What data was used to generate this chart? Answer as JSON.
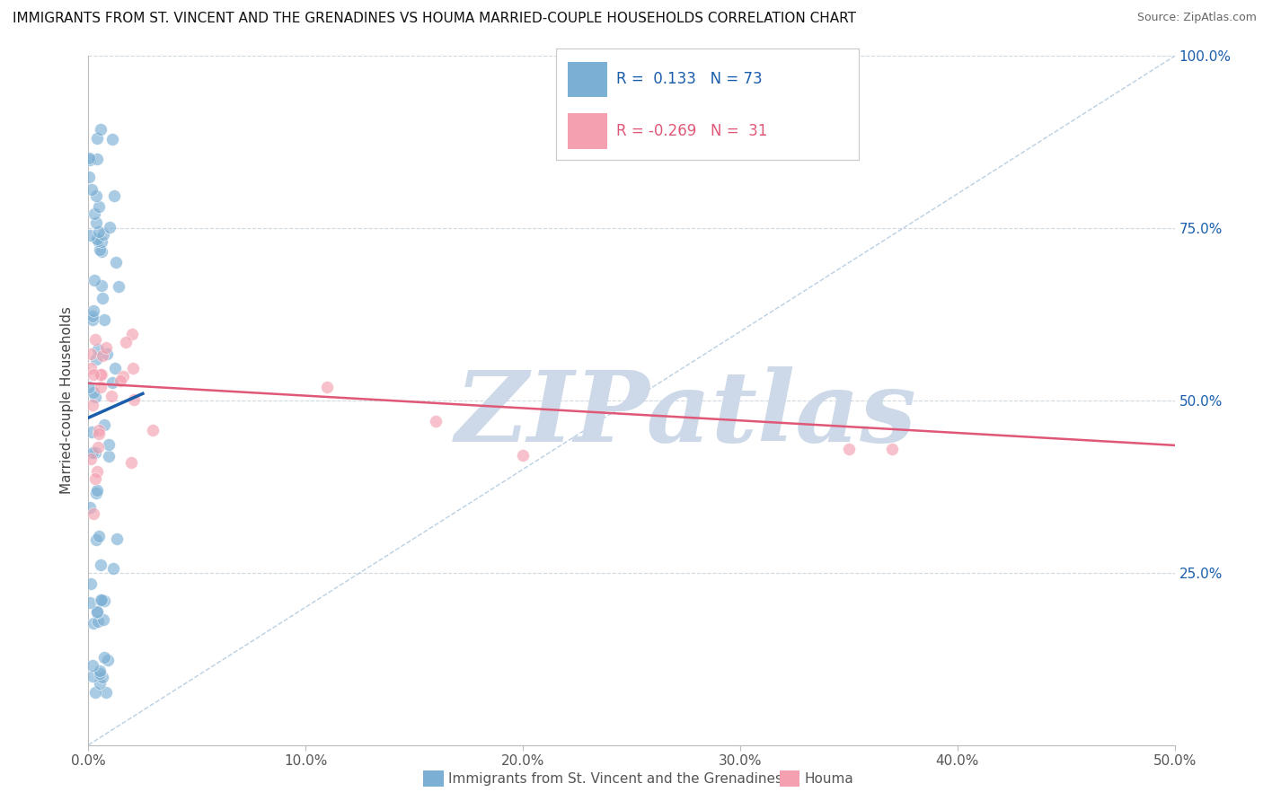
{
  "title": "IMMIGRANTS FROM ST. VINCENT AND THE GRENADINES VS HOUMA MARRIED-COUPLE HOUSEHOLDS CORRELATION CHART",
  "source": "Source: ZipAtlas.com",
  "xlabel_blue": "Immigrants from St. Vincent and the Grenadines",
  "xlabel_pink": "Houma",
  "ylabel": "Married-couple Households",
  "xlim": [
    0.0,
    0.5
  ],
  "ylim": [
    0.0,
    1.0
  ],
  "xtick_vals": [
    0.0,
    0.1,
    0.2,
    0.3,
    0.4,
    0.5
  ],
  "xtick_labels": [
    "0.0%",
    "10.0%",
    "20.0%",
    "30.0%",
    "40.0%",
    "50.0%"
  ],
  "ytick_vals": [
    0.0,
    0.25,
    0.5,
    0.75,
    1.0
  ],
  "ytick_labels_right": [
    "",
    "25.0%",
    "50.0%",
    "75.0%",
    "100.0%"
  ],
  "R_blue": 0.133,
  "N_blue": 73,
  "R_pink": -0.269,
  "N_pink": 31,
  "blue_color": "#7BAFD4",
  "pink_color": "#F4A0B0",
  "blue_line_color": "#1A5DAB",
  "pink_line_color": "#E05878",
  "ref_line_color": "#A8C4DC",
  "watermark_color": "#CDD9E8",
  "watermark_text": "ZIPatlas",
  "blue_line_x": [
    0.0,
    0.025
  ],
  "blue_line_y": [
    0.475,
    0.51
  ],
  "pink_line_x": [
    0.0,
    0.5
  ],
  "pink_line_y": [
    0.525,
    0.435
  ],
  "diag_line_x": [
    0.0,
    0.5
  ],
  "diag_line_y": [
    0.0,
    1.0
  ],
  "legend_blue_text": "R =  0.133   N = 73",
  "legend_pink_text": "R = -0.269   N =  31"
}
